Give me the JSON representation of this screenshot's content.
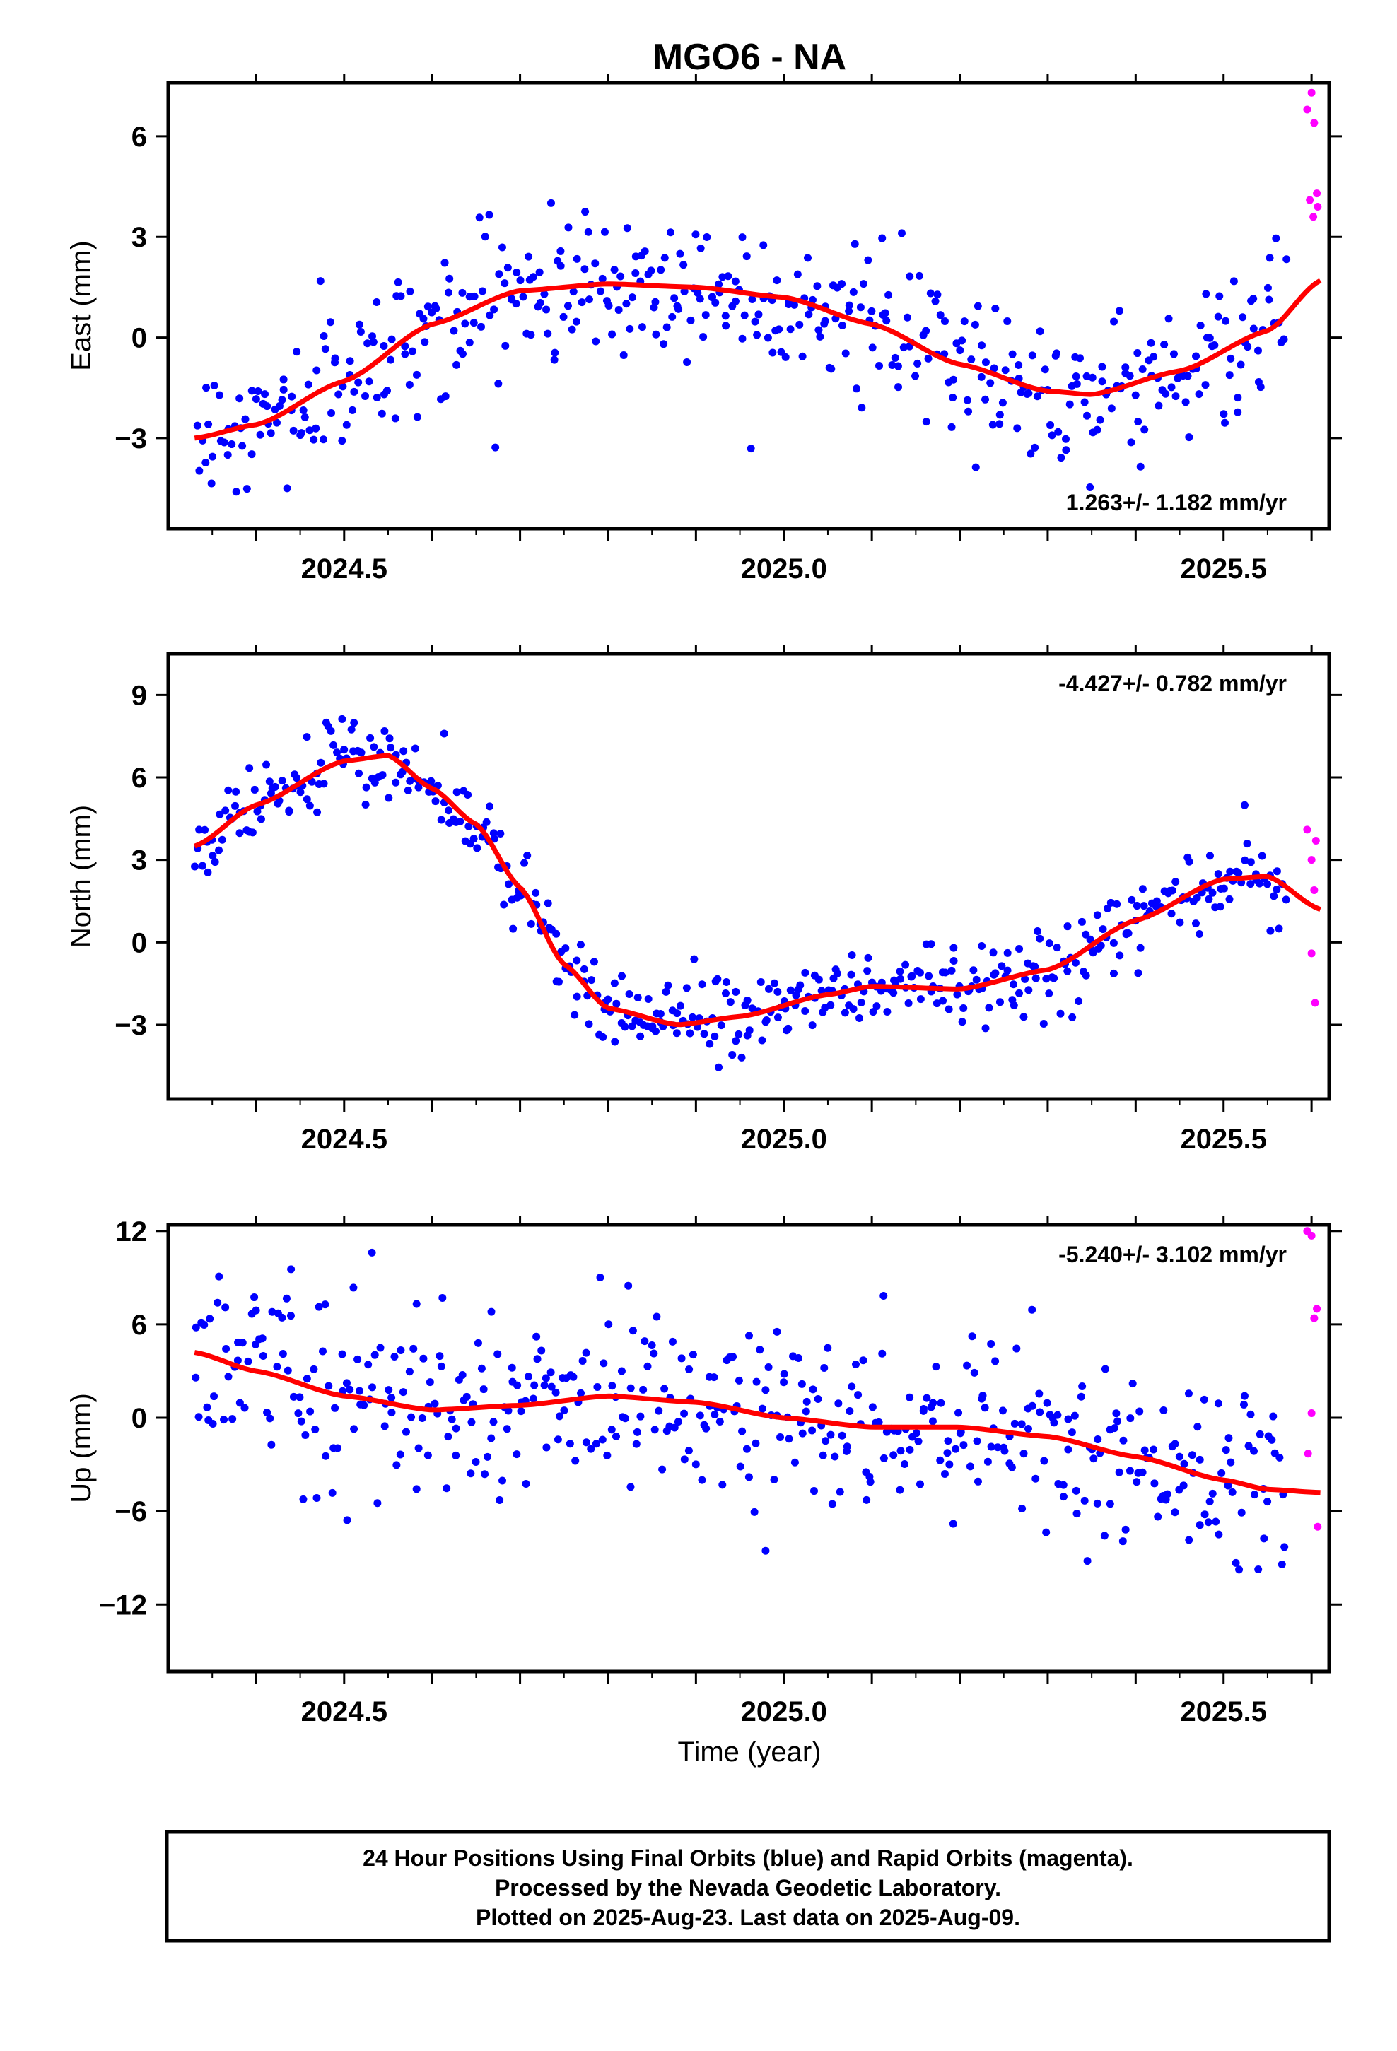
{
  "title": "MGO6 - NA",
  "xlabel": "Time (year)",
  "footer": {
    "line1": "24 Hour Positions Using Final Orbits (blue) and Rapid Orbits (magenta).",
    "line2": "Processed by the Nevada Geodetic Laboratory.",
    "line3": "Plotted on 2025-Aug-23. Last data on 2025-Aug-09."
  },
  "colors": {
    "final": "#0000ff",
    "rapid": "#ff00ff",
    "fit": "#ff0000"
  },
  "chart_data": [
    {
      "type": "scatter",
      "id": "east",
      "ylabel": "East (mm)",
      "rate": "1.263+/- 1.182 mm/yr",
      "xlim": [
        2024.3,
        2025.62
      ],
      "ylim": [
        -5.7,
        7.6
      ],
      "xticks": [
        "2024.5",
        "2025.0",
        "2025.5"
      ],
      "xtick_values": [
        2024.5,
        2025.0,
        2025.5
      ],
      "yticks": [
        "−3",
        "0",
        "3",
        "6"
      ],
      "ytick_values": [
        -3,
        0,
        3,
        6
      ],
      "fit": {
        "x": [
          2024.33,
          2024.4,
          2024.5,
          2024.6,
          2024.7,
          2024.8,
          2024.9,
          2025.0,
          2025.1,
          2025.2,
          2025.3,
          2025.35,
          2025.45,
          2025.55,
          2025.61
        ],
        "y": [
          -3.0,
          -2.6,
          -1.3,
          0.4,
          1.4,
          1.6,
          1.5,
          1.2,
          0.4,
          -0.8,
          -1.6,
          -1.7,
          -1.0,
          0.2,
          1.7
        ]
      },
      "rapid": {
        "x": [
          2025.595,
          2025.6,
          2025.603,
          2025.598,
          2025.602,
          2025.607,
          2025.606
        ],
        "y": [
          6.8,
          7.3,
          6.4,
          4.1,
          3.6,
          3.9,
          4.3
        ]
      }
    },
    {
      "type": "scatter",
      "id": "north",
      "ylabel": "North (mm)",
      "rate": "-4.427+/- 0.782 mm/yr",
      "xlim": [
        2024.3,
        2025.62
      ],
      "ylim": [
        -5.7,
        10.5
      ],
      "xticks": [
        "2024.5",
        "2025.0",
        "2025.5"
      ],
      "xtick_values": [
        2024.5,
        2025.0,
        2025.5
      ],
      "yticks": [
        "−3",
        "0",
        "3",
        "6",
        "9"
      ],
      "ytick_values": [
        -3,
        0,
        3,
        6,
        9
      ],
      "fit": {
        "x": [
          2024.33,
          2024.4,
          2024.5,
          2024.55,
          2024.6,
          2024.65,
          2024.7,
          2024.75,
          2024.8,
          2024.88,
          2024.95,
          2025.05,
          2025.1,
          2025.2,
          2025.3,
          2025.4,
          2025.5,
          2025.55,
          2025.61
        ],
        "y": [
          3.5,
          5.0,
          6.6,
          6.8,
          5.6,
          4.3,
          2.0,
          -0.8,
          -2.4,
          -3.0,
          -2.7,
          -1.9,
          -1.6,
          -1.7,
          -1.0,
          0.8,
          2.3,
          2.4,
          1.2
        ]
      },
      "rapid": {
        "x": [
          2025.595,
          2025.605,
          2025.6,
          2025.603,
          2025.6,
          2025.604
        ],
        "y": [
          4.1,
          3.7,
          3.0,
          1.9,
          -0.4,
          -2.2
        ]
      }
    },
    {
      "type": "scatter",
      "id": "up",
      "ylabel": "Up (mm)",
      "rate": "-5.240+/- 3.102 mm/yr",
      "xlim": [
        2024.3,
        2025.62
      ],
      "ylim": [
        -16.3,
        12.4
      ],
      "xticks": [
        "2024.5",
        "2025.0",
        "2025.5"
      ],
      "xtick_values": [
        2024.5,
        2025.0,
        2025.5
      ],
      "yticks": [
        "−12",
        "−6",
        "0",
        "6",
        "12"
      ],
      "ytick_values": [
        -12,
        -6,
        0,
        6,
        12
      ],
      "fit": {
        "x": [
          2024.33,
          2024.4,
          2024.5,
          2024.6,
          2024.7,
          2024.8,
          2024.9,
          2025.0,
          2025.1,
          2025.2,
          2025.3,
          2025.4,
          2025.5,
          2025.55,
          2025.61
        ],
        "y": [
          4.2,
          3.0,
          1.4,
          0.5,
          0.8,
          1.4,
          1.0,
          0.0,
          -0.6,
          -0.6,
          -1.2,
          -2.5,
          -4.0,
          -4.6,
          -4.8
        ]
      },
      "rapid": {
        "x": [
          2025.595,
          2025.6,
          2025.603,
          2025.606,
          2025.6,
          2025.596,
          2025.607
        ],
        "y": [
          12.0,
          11.7,
          6.4,
          7.0,
          0.3,
          -2.3,
          -7.0
        ]
      }
    }
  ]
}
